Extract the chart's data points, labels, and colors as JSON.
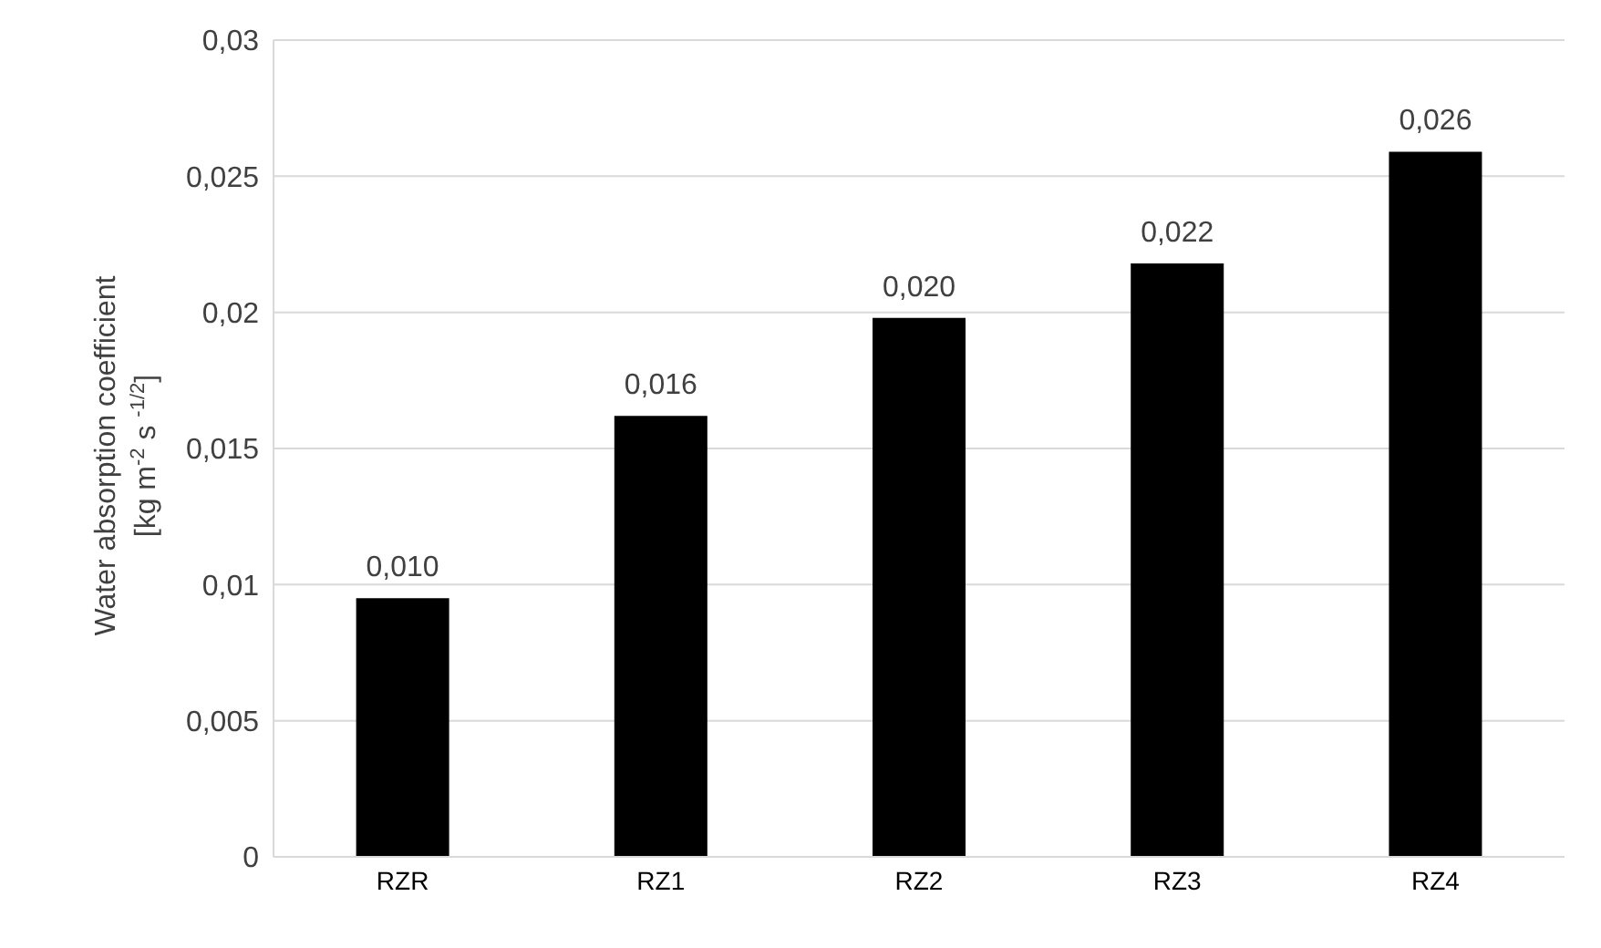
{
  "chart_data": {
    "type": "bar",
    "ylabel": "Water absorption coefficient\n[kg m$^{-2}$ s $^{-1/2}$]",
    "categories": [
      "RZR",
      "RZ1",
      "RZ2",
      "RZ3",
      "RZ4"
    ],
    "values": [
      0.0095,
      0.0162,
      0.0198,
      0.0218,
      0.0259
    ],
    "value_labels": [
      "0,010",
      "0,016",
      "0,020",
      "0,022",
      "0,026"
    ],
    "color": "#000000",
    "ylim": [
      0,
      0.03
    ],
    "yticks": [
      0,
      {
        "value": 0.005,
        "label": "0,005"
      },
      {
        "value": 0.01,
        "label": "0,01"
      },
      {
        "value": 0.015,
        "label": "0,015"
      },
      {
        "value": 0.02,
        "label": "0,02"
      },
      {
        "value": 0.025,
        "label": "0,025"
      },
      {
        "value": 0.03,
        "label": "0,03"
      }
    ],
    "grid": "y",
    "legend": false
  }
}
